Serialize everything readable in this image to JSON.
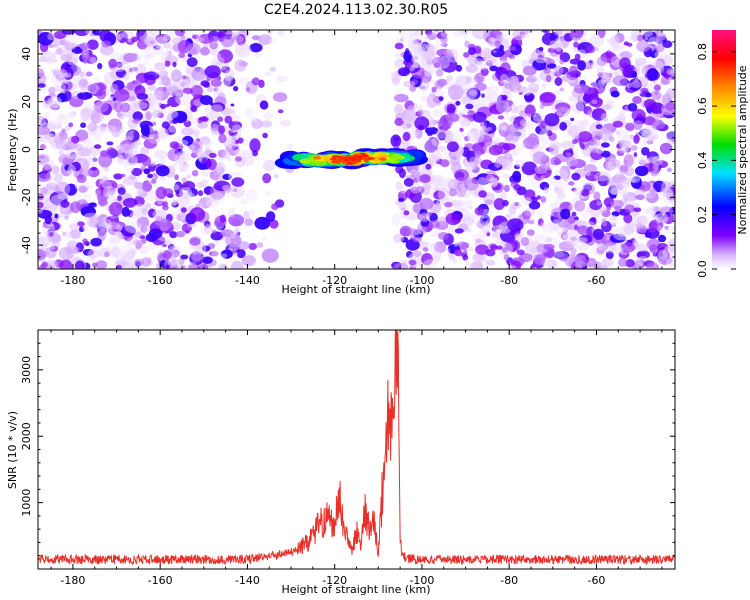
{
  "title": "C2E4.2024.113.02.30.R05",
  "colors": {
    "trace": "#e8302a",
    "axis": "#000000"
  },
  "chart_data": [
    {
      "type": "heatmap",
      "xlabel": "Height of straight line (km)",
      "ylabel": "Frequency (Hz)",
      "xlim": [
        -188,
        -42
      ],
      "ylim": [
        -50,
        50
      ],
      "xticks": [
        -180,
        -160,
        -140,
        -120,
        -100,
        -80,
        -60
      ],
      "yticks": [
        -40,
        -20,
        0,
        20,
        40
      ],
      "colormap": "rainbow (white → purple → blue → cyan → green → yellow → red → magenta)",
      "colorbar": {
        "label": "Normalized spectral amplitude",
        "range": [
          0.0,
          0.88
        ],
        "ticks": [
          0.0,
          0.2,
          0.4,
          0.6,
          0.8
        ]
      },
      "empty_band_km": [
        -130,
        -106
      ],
      "signal": {
        "x_range_km": [
          -133,
          -103
        ],
        "freq_hz": -4,
        "peak_amplitude": 0.85
      }
    },
    {
      "type": "line",
      "xlabel": "Height of straight line (km)",
      "ylabel": "SNR (10 * v/v)",
      "xlim": [
        -188,
        -42
      ],
      "ylim": [
        0,
        3600
      ],
      "xticks": [
        -180,
        -160,
        -140,
        -120,
        -100,
        -80,
        -60
      ],
      "yticks": [
        1000,
        2000,
        3000
      ],
      "series": [
        {
          "noise_level": 150,
          "x": [
            -188,
            -140,
            -130,
            -126,
            -124,
            -122,
            -120,
            -119,
            -118,
            -117,
            -116,
            -115,
            -114,
            -113,
            -112,
            -111,
            -110,
            -109,
            -108,
            -107,
            -106.2,
            -105.6,
            -105.3,
            -105.0,
            -104.6,
            -103,
            -100,
            -60,
            -42
          ],
          "y": [
            150,
            150,
            250,
            420,
            650,
            800,
            620,
            1150,
            650,
            500,
            250,
            600,
            350,
            950,
            550,
            750,
            200,
            1300,
            2400,
            2100,
            3300,
            3600,
            2100,
            450,
            220,
            160,
            150,
            150,
            150
          ]
        }
      ]
    }
  ]
}
